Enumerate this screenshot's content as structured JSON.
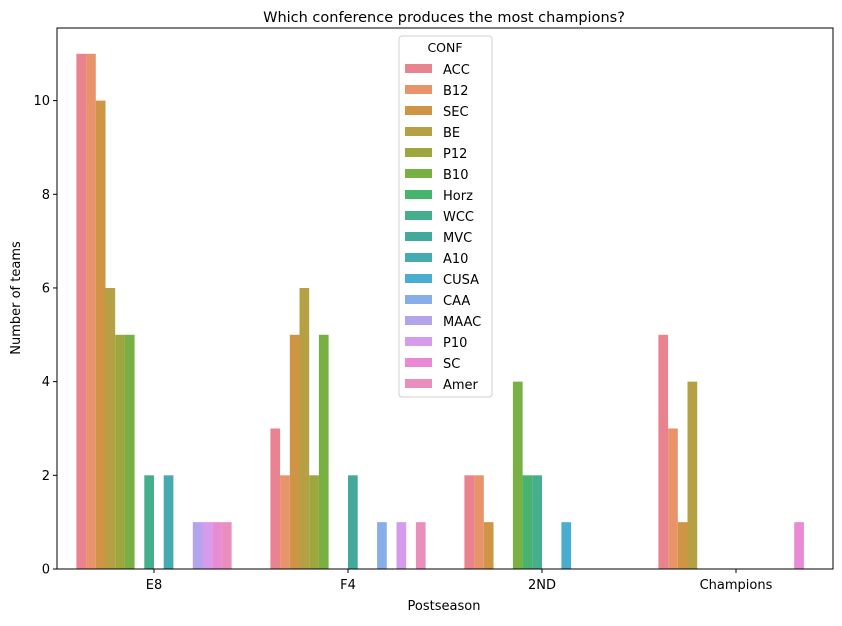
{
  "chart_data": {
    "type": "bar",
    "title": "Which conference produces the most champions?",
    "xlabel": "Postseason",
    "ylabel": "Number of teams",
    "categories": [
      "E8",
      "F4",
      "2ND",
      "Champions"
    ],
    "ylim": [
      0,
      11.55
    ],
    "yticks": [
      0,
      2,
      4,
      6,
      8,
      10
    ],
    "grid": false,
    "legend": {
      "title": "CONF",
      "placement": "upper center"
    },
    "series": [
      {
        "name": "ACC",
        "color": "#e8838f",
        "values": [
          11,
          3,
          2,
          5
        ]
      },
      {
        "name": "B12",
        "color": "#e8936a",
        "values": [
          11,
          2,
          2,
          3
        ]
      },
      {
        "name": "SEC",
        "color": "#cf9444",
        "values": [
          10,
          5,
          1,
          1
        ]
      },
      {
        "name": "BE",
        "color": "#b5a043",
        "values": [
          6,
          6,
          0,
          4
        ]
      },
      {
        "name": "P12",
        "color": "#9da73e",
        "values": [
          5,
          2,
          0,
          0
        ]
      },
      {
        "name": "B10",
        "color": "#79b043",
        "values": [
          5,
          5,
          4,
          0
        ]
      },
      {
        "name": "Horz",
        "color": "#47b46e",
        "values": [
          0,
          0,
          2,
          0
        ]
      },
      {
        "name": "WCC",
        "color": "#45ae8d",
        "values": [
          2,
          0,
          2,
          0
        ]
      },
      {
        "name": "MVC",
        "color": "#43aa9b",
        "values": [
          0,
          2,
          0,
          0
        ]
      },
      {
        "name": "A10",
        "color": "#46abb0",
        "values": [
          2,
          0,
          0,
          0
        ]
      },
      {
        "name": "CUSA",
        "color": "#48adcf",
        "values": [
          0,
          0,
          1,
          0
        ]
      },
      {
        "name": "CAA",
        "color": "#87aee8",
        "values": [
          0,
          1,
          0,
          0
        ]
      },
      {
        "name": "MAAC",
        "color": "#b3a4eb",
        "values": [
          1,
          0,
          0,
          0
        ]
      },
      {
        "name": "P10",
        "color": "#d79bec",
        "values": [
          1,
          1,
          0,
          0
        ]
      },
      {
        "name": "SC",
        "color": "#e98ad6",
        "values": [
          1,
          0,
          0,
          1
        ]
      },
      {
        "name": "Amer",
        "color": "#ea8fbd",
        "values": [
          1,
          1,
          0,
          0
        ]
      }
    ]
  }
}
